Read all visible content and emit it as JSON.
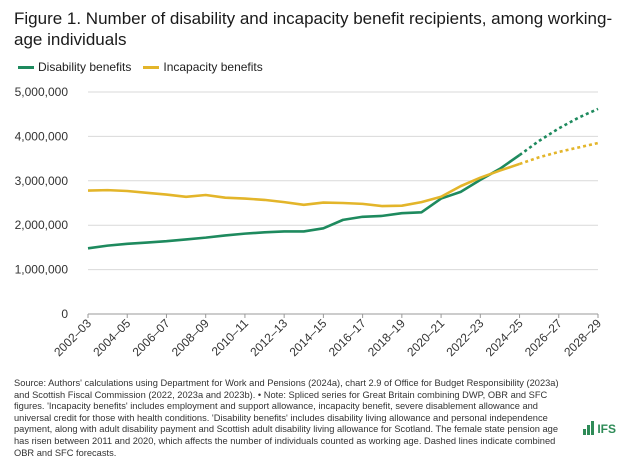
{
  "figure": {
    "title": "Figure 1. Number of disability and incapacity benefit recipients, among working-age individuals",
    "source": "Source: Authors' calculations using Department for Work and Pensions (2024a), chart 2.9 of Office for Budget Responsibility (2023a) and Scottish Fiscal Commission (2022, 2023a and 2023b). • Note: Spliced series for Great Britain combining DWP, OBR and SFC figures. 'Incapacity benefits' includes employment and support allowance, incapacity benefit, severe disablement allowance and universal credit for those with health conditions. 'Disability benefits' includes disability living allowance and personal independence payment, along with adult disability payment and Scottish adult disability living allowance for Scotland. The female state pension age has risen between 2011 and 2020, which affects the number of individuals counted as working age. Dashed lines indicate combined OBR and SFC forecasts.",
    "logo_text": "IFS"
  },
  "chart_data": {
    "type": "line",
    "x_tick_labels": [
      "2002–03",
      "2004–05",
      "2006–07",
      "2008–09",
      "2010–11",
      "2012–13",
      "2014–15",
      "2016–17",
      "2018–19",
      "2020–21",
      "2022–23",
      "2024–25",
      "2026–27",
      "2028–29"
    ],
    "x": [
      "2002–03",
      "2003–04",
      "2004–05",
      "2005–06",
      "2006–07",
      "2007–08",
      "2008–09",
      "2009–10",
      "2010–11",
      "2011–12",
      "2012–13",
      "2013–14",
      "2014–15",
      "2015–16",
      "2016–17",
      "2017–18",
      "2018–19",
      "2019–20",
      "2020–21",
      "2021–22",
      "2022–23",
      "2023–24",
      "2024–25",
      "2025–26",
      "2026–27",
      "2027–28",
      "2028–29"
    ],
    "y_tick_labels": [
      "0",
      "1,000,000",
      "2,000,000",
      "3,000,000",
      "4,000,000",
      "5,000,000"
    ],
    "ylim": [
      0,
      5000000
    ],
    "grid": true,
    "legend_position": "top-left",
    "forecast_start": "2024–25",
    "series": [
      {
        "name": "Disability benefits",
        "color": "#1e8a5e",
        "values": [
          1480000,
          1540000,
          1580000,
          1610000,
          1640000,
          1680000,
          1720000,
          1770000,
          1810000,
          1840000,
          1860000,
          1860000,
          1930000,
          2120000,
          2190000,
          2210000,
          2270000,
          2290000,
          2600000,
          2750000,
          3020000,
          3270000,
          3580000,
          3900000,
          4180000,
          4420000,
          4620000
        ]
      },
      {
        "name": "Incapacity benefits",
        "color": "#e3b52a",
        "values": [
          2780000,
          2790000,
          2770000,
          2730000,
          2690000,
          2640000,
          2680000,
          2620000,
          2600000,
          2570000,
          2520000,
          2460000,
          2510000,
          2500000,
          2480000,
          2430000,
          2440000,
          2520000,
          2640000,
          2880000,
          3070000,
          3230000,
          3380000,
          3530000,
          3650000,
          3750000,
          3850000
        ]
      }
    ]
  }
}
